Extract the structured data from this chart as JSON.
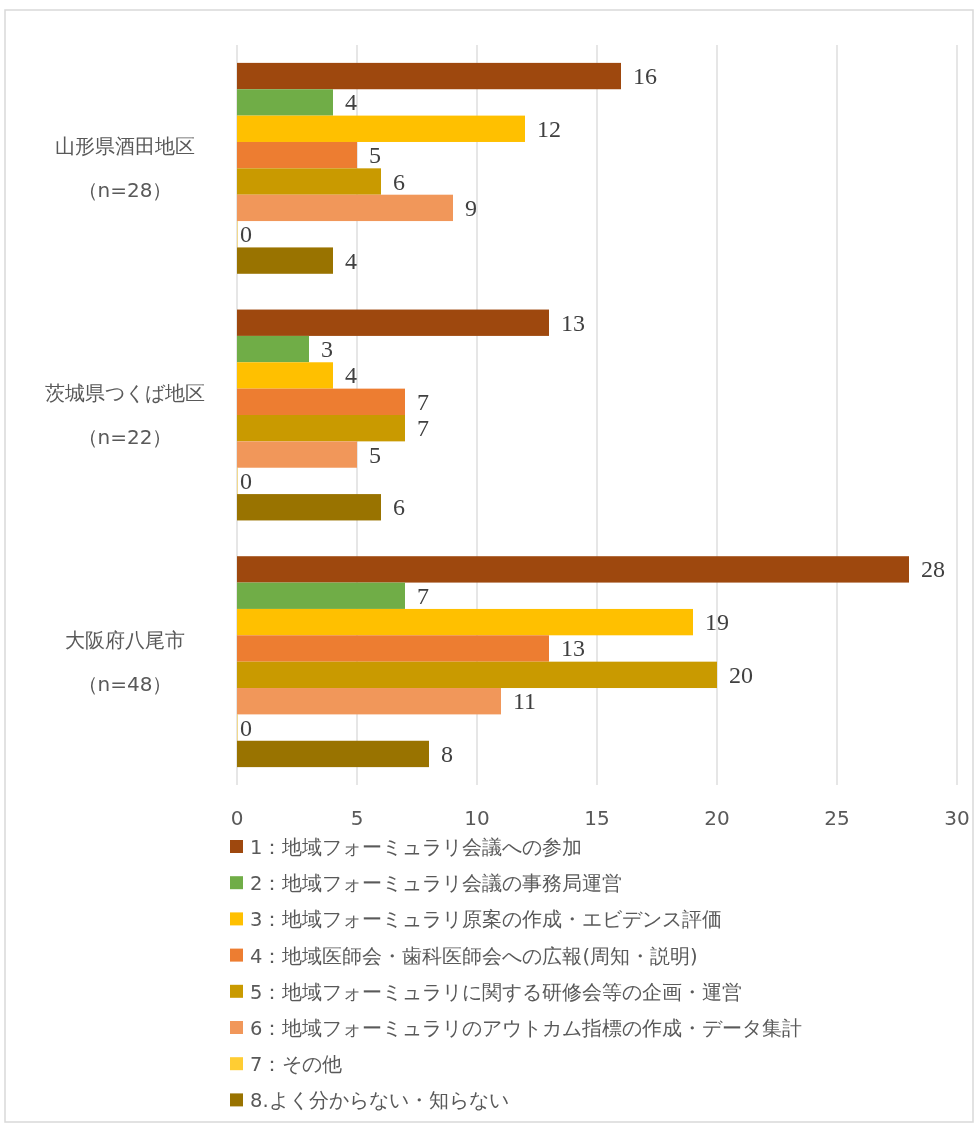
{
  "chart_data": {
    "type": "bar",
    "orientation": "horizontal",
    "categories": [
      "山形県酒田地区（n=28）",
      "茨城県つくば地区（n=22）",
      "大阪府八尾市（n=48）"
    ],
    "series": [
      {
        "name": "1：地域フォーミュラリ会議への参加",
        "color": "#9e480e",
        "values": [
          16,
          13,
          28
        ]
      },
      {
        "name": "2：地域フォーミュラリ会議の事務局運営",
        "color": "#70ad47",
        "values": [
          4,
          3,
          7
        ]
      },
      {
        "name": "3：地域フォーミュラリ原案の作成・エビデンス評価",
        "color": "#ffc000",
        "values": [
          12,
          4,
          19
        ]
      },
      {
        "name": "4：地域医師会・歯科医師会への広報(周知・説明)",
        "color": "#ed7d31",
        "values": [
          5,
          7,
          13
        ]
      },
      {
        "name": "5：地域フォーミュラリに関する研修会等の企画・運営",
        "color": "#c99a00",
        "values": [
          6,
          7,
          20
        ]
      },
      {
        "name": "6：地域フォーミュラリのアウトカム指標の作成・データ集計",
        "color": "#f1975a",
        "values": [
          9,
          5,
          11
        ]
      },
      {
        "name": "7：その他",
        "color": "#ffcd33",
        "values": [
          0,
          0,
          0
        ]
      },
      {
        "name": "8.よく分からない・知らない",
        "color": "#997300",
        "values": [
          4,
          6,
          8
        ]
      }
    ],
    "xlim": [
      0,
      30
    ],
    "xticks": [
      0,
      5,
      10,
      15,
      20,
      25,
      30
    ],
    "grid": "x",
    "data_labels": true,
    "legend": "bottom"
  }
}
